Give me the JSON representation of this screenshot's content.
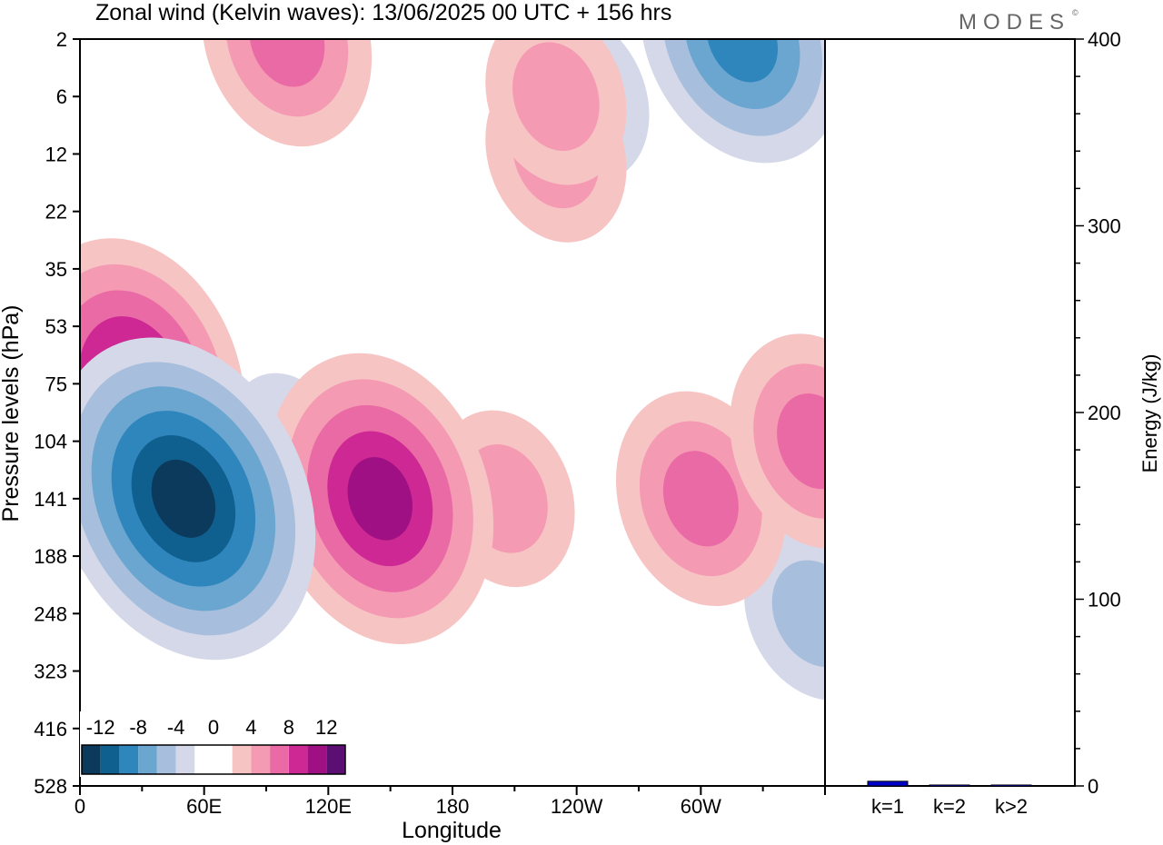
{
  "title": "Zonal wind (Kelvin waves):  13/06/2025  00 UTC  + 156 hrs",
  "brand": "MODES",
  "brand_mark": "©",
  "chart_data": [
    {
      "type": "heatmap",
      "variable": "Zonal wind (Kelvin waves)",
      "xlabel": "Longitude",
      "ylabel": "Pressure levels (hPa)",
      "x_ticks": [
        "0",
        "60E",
        "120E",
        "180",
        "120W",
        "60W"
      ],
      "x_tick_values": [
        0,
        60,
        120,
        180,
        240,
        300
      ],
      "xlim": [
        0,
        360
      ],
      "y_ticks": [
        "2",
        "6",
        "12",
        "22",
        "35",
        "53",
        "75",
        "104",
        "141",
        "188",
        "248",
        "323",
        "416",
        "528"
      ],
      "y_scale": "pressure levels, top to bottom",
      "colorbar": {
        "tick_labels": [
          "-12",
          "-8",
          "-4",
          "0",
          "4",
          "8",
          "12"
        ],
        "levels": [
          -14,
          -12,
          -10,
          -8,
          -6,
          -4,
          -2,
          0,
          2,
          4,
          6,
          8,
          10,
          12,
          14
        ],
        "colors": [
          "#0b3a5c",
          "#10608f",
          "#2f86bd",
          "#6aa6cf",
          "#a7bfdc",
          "#d5d8e9",
          "#ffffff",
          "#ffffff",
          "#f7c4c4",
          "#f59ab3",
          "#ea6aa6",
          "#cd2893",
          "#9e1083",
          "#5b0f72"
        ]
      },
      "features": [
        {
          "kind": "negative",
          "lon": 50,
          "level": "141",
          "peak": -14
        },
        {
          "kind": "negative",
          "lon": 25,
          "level": "141",
          "peak": -8
        },
        {
          "kind": "negative",
          "lon": 100,
          "level": "104",
          "peak": -4
        },
        {
          "kind": "negative",
          "lon": 356,
          "level": "248",
          "peak": -6
        },
        {
          "kind": "negative",
          "lon": 320,
          "level": "2",
          "peak": -10
        },
        {
          "kind": "negative",
          "lon": 240,
          "level": "6",
          "peak": -6
        },
        {
          "kind": "positive",
          "lon": 25,
          "level": "75",
          "peak": 12
        },
        {
          "kind": "positive",
          "lon": 145,
          "level": "141",
          "peak": 12
        },
        {
          "kind": "positive",
          "lon": 205,
          "level": "141",
          "peak": 6
        },
        {
          "kind": "positive",
          "lon": 300,
          "level": "141",
          "peak": 8
        },
        {
          "kind": "positive",
          "lon": 355,
          "level": "104",
          "peak": 8
        },
        {
          "kind": "positive",
          "lon": 230,
          "level": "12",
          "peak": 6
        },
        {
          "kind": "positive",
          "lon": 230,
          "level": "6",
          "peak": 6
        },
        {
          "kind": "positive",
          "lon": 100,
          "level": "2",
          "peak": 8
        }
      ]
    },
    {
      "type": "bar",
      "categories": [
        "k=1",
        "k=2",
        "k>2"
      ],
      "values": [
        2.5,
        0.5,
        0.5
      ],
      "ylabel": "Energy (J/kg)",
      "ylim": [
        0,
        400
      ],
      "y_ticks": [
        0,
        100,
        200,
        300,
        400
      ],
      "bar_colors": [
        "#0000cc",
        "#0000cc",
        "#0000cc"
      ]
    }
  ]
}
